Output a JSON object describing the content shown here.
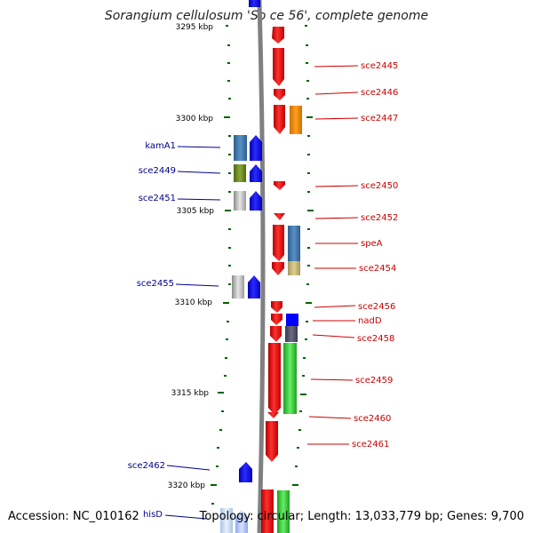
{
  "title": "Sorangium cellulosum 'So ce 56', complete genome",
  "footer": {
    "accession": "Accession: NC_010162",
    "topology": "Topology: circular; Length: 13,033,779 bp; Genes: 9,700"
  },
  "scale": [
    {
      "label": "3295 kbp",
      "partial": true
    },
    {
      "label": "3300 kbp"
    },
    {
      "label": "3305 kbp"
    },
    {
      "label": "3310 kbp"
    },
    {
      "label": "3315 kbp"
    },
    {
      "label": "3320 kbp"
    }
  ],
  "genes": {
    "reverse": [
      "sce2445",
      "sce2446",
      "sce2447",
      "sce2450",
      "sce2452",
      "speA",
      "sce2454",
      "sce2456",
      "nadD",
      "sce2458",
      "sce2459",
      "sce2460",
      "sce2461"
    ],
    "forward": [
      "kamA1",
      "sce2449",
      "sce2451",
      "sce2455",
      "sce2462",
      "hisD"
    ]
  },
  "colors": {
    "reverse_gene": "#ff0000",
    "forward_gene": "#0000ff",
    "backbone": "#808080",
    "tick": "#006400",
    "label_right": "#cc0000",
    "label_left": "#00008b"
  }
}
